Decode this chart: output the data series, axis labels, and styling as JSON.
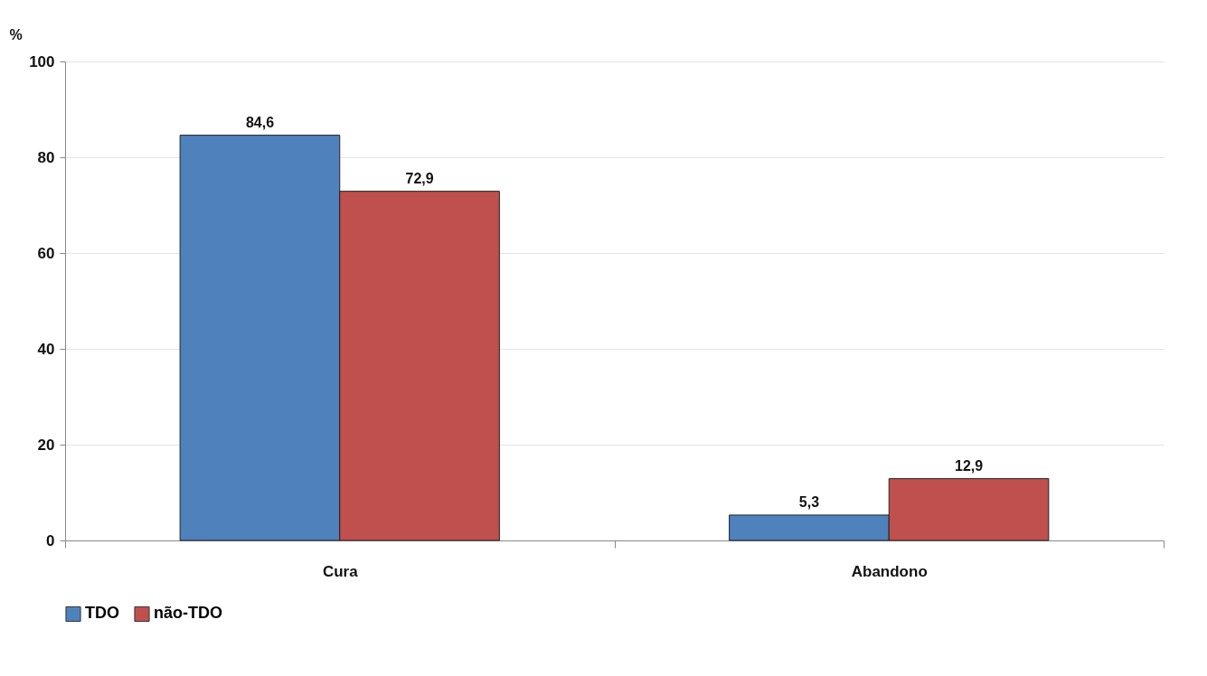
{
  "chart_data": {
    "type": "bar",
    "ylabel": "%",
    "categories": [
      "Cura",
      "Abandono"
    ],
    "series": [
      {
        "name": "TDO",
        "color": "#4f81bd",
        "values": [
          84.6,
          5.3
        ],
        "value_labels": [
          "84,6",
          "5,3"
        ]
      },
      {
        "name": "não-TDO",
        "color": "#c0504d",
        "values": [
          72.9,
          12.9
        ],
        "value_labels": [
          "72,9",
          "12,9"
        ]
      }
    ],
    "ylim": [
      0,
      100
    ],
    "yticks": [
      0,
      20,
      40,
      60,
      80,
      100
    ],
    "grid": "y",
    "legend": "bottom"
  }
}
